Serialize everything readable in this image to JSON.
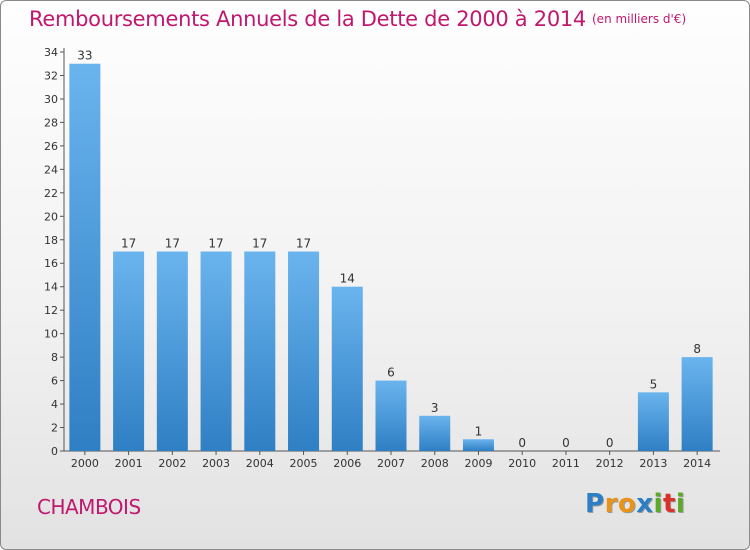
{
  "header": {
    "title": "Remboursements Annuels de la Dette de 2000 à 2014",
    "unit": "(en milliers d'€)"
  },
  "footer": {
    "commune": "CHAMBOIS",
    "logo_letters": [
      "P",
      "r",
      "o",
      "x",
      "i",
      "t",
      "i"
    ],
    "logo_colors": [
      "#2c7fc4",
      "#e8941b",
      "#e8941b",
      "#2c7fc4",
      "#5aaa28",
      "#d8322a",
      "#5aaa28"
    ]
  },
  "colors": {
    "title": "#c0186e",
    "bar_light": "#6ab4ee",
    "bar_dark": "#2f7fc4"
  },
  "chart_data": {
    "type": "bar",
    "title": "Remboursements Annuels de la Dette de 2000 à 2014",
    "subtitle": "(en milliers d'€)",
    "xlabel": "",
    "ylabel": "",
    "categories": [
      "2000",
      "2001",
      "2002",
      "2003",
      "2004",
      "2005",
      "2006",
      "2007",
      "2008",
      "2009",
      "2010",
      "2011",
      "2012",
      "2013",
      "2014"
    ],
    "values": [
      33,
      17,
      17,
      17,
      17,
      17,
      14,
      6,
      3,
      1,
      0,
      0,
      0,
      5,
      8
    ],
    "ylim": [
      0,
      34
    ],
    "yticks": [
      0,
      2,
      4,
      6,
      8,
      10,
      12,
      14,
      16,
      18,
      20,
      22,
      24,
      26,
      28,
      30,
      32,
      34
    ],
    "grid": false,
    "legend": "none",
    "data_labels": true
  }
}
